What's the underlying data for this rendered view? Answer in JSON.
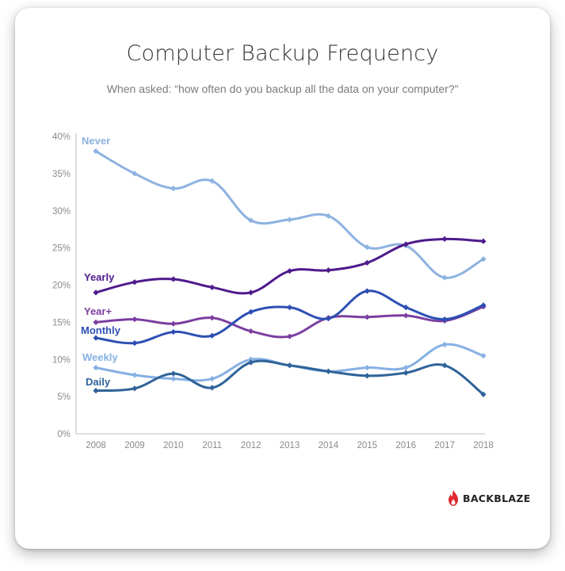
{
  "chart_data": {
    "type": "line",
    "title": "Computer Backup Frequency",
    "subtitle": "When asked: “how often do you backup all the data on your computer?”",
    "x": [
      "2008",
      "2009",
      "2010",
      "2011",
      "2012",
      "2013",
      "2014",
      "2015",
      "2016",
      "2017",
      "2018"
    ],
    "ylim": [
      0,
      40
    ],
    "yticks": [
      "0%",
      "5%",
      "10%",
      "15%",
      "20%",
      "25%",
      "30%",
      "35%",
      "40%"
    ],
    "series": [
      {
        "name": "Never",
        "color": "#8eb2e0",
        "values": [
          38,
          35,
          33,
          34,
          28.7,
          28.8,
          29.3,
          25.1,
          25.3,
          21,
          23.5
        ]
      },
      {
        "name": "Yearly",
        "color": "#4e1a8c",
        "values": [
          19,
          20.4,
          20.8,
          19.7,
          19,
          21.9,
          22,
          23,
          25.5,
          26.2,
          25.9
        ]
      },
      {
        "name": "Year+",
        "color": "#7b3fa0",
        "values": [
          15,
          15.4,
          14.8,
          15.6,
          13.8,
          13.1,
          15.6,
          15.7,
          15.9,
          15.2,
          17.1
        ]
      },
      {
        "name": "Monthly",
        "color": "#2d4fb4",
        "values": [
          12.9,
          12.2,
          13.7,
          13.2,
          16.4,
          17,
          15.5,
          19.2,
          17,
          15.4,
          17.3
        ]
      },
      {
        "name": "Weekly",
        "color": "#86b0e4",
        "values": [
          8.9,
          7.9,
          7.4,
          7.4,
          10,
          9.2,
          8.4,
          8.9,
          8.9,
          12,
          10.5
        ]
      },
      {
        "name": "Daily",
        "color": "#2f6399",
        "values": [
          5.8,
          6.1,
          8.1,
          6.2,
          9.6,
          9.2,
          8.4,
          7.8,
          8.2,
          9.2,
          5.3
        ]
      }
    ],
    "grid": false,
    "legend": "inline-left"
  },
  "brand": {
    "name": "BACKBLAZE",
    "color": "#e0272d"
  }
}
